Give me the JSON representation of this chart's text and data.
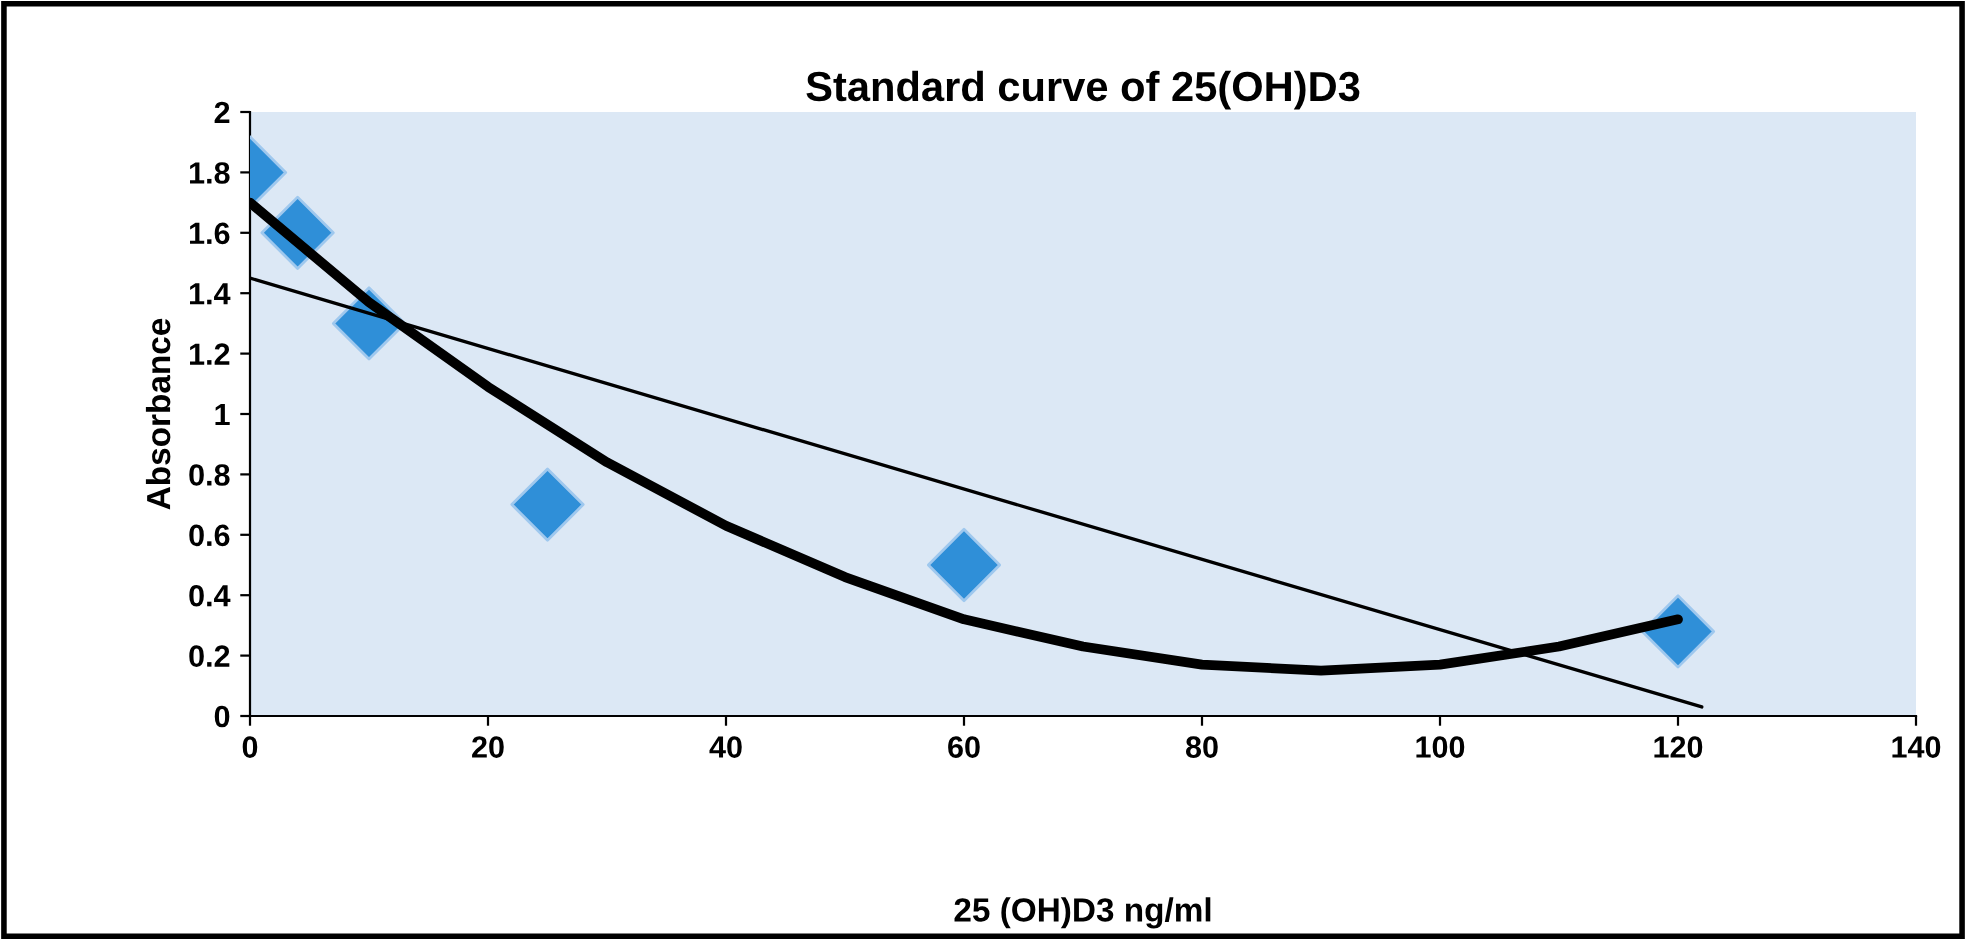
{
  "chart_data": {
    "type": "scatter",
    "title": "Standard curve of 25(OH)D3",
    "xlabel": "25 (OH)D3 ng/ml",
    "ylabel": "Absorbance",
    "xlim": [
      0,
      140
    ],
    "ylim": [
      0,
      2
    ],
    "xticks": [
      0,
      20,
      40,
      60,
      80,
      100,
      120,
      140
    ],
    "yticks": [
      0,
      0.2,
      0.4,
      0.6,
      0.8,
      1,
      1.2,
      1.4,
      1.6,
      1.8,
      2
    ],
    "series": [
      {
        "marker": "diamond",
        "color": "#2f8fd8",
        "x": [
          0,
          4,
          10,
          25,
          60,
          120
        ],
        "values": [
          1.8,
          1.6,
          1.3,
          0.7,
          0.5,
          0.28
        ]
      },
      {
        "type": "line",
        "color": "#000000",
        "line_style": "solid",
        "x": [
          0,
          122
        ],
        "values": [
          1.45,
          0.03
        ]
      },
      {
        "type": "line",
        "color": "#000000",
        "line_style": "solid",
        "x": [
          0,
          10,
          20,
          30,
          40,
          50,
          60,
          70,
          80,
          90,
          100,
          110,
          120
        ],
        "values": [
          1.7,
          1.37,
          1.09,
          0.84,
          0.63,
          0.46,
          0.32,
          0.23,
          0.17,
          0.15,
          0.17,
          0.23,
          0.32
        ]
      }
    ]
  }
}
